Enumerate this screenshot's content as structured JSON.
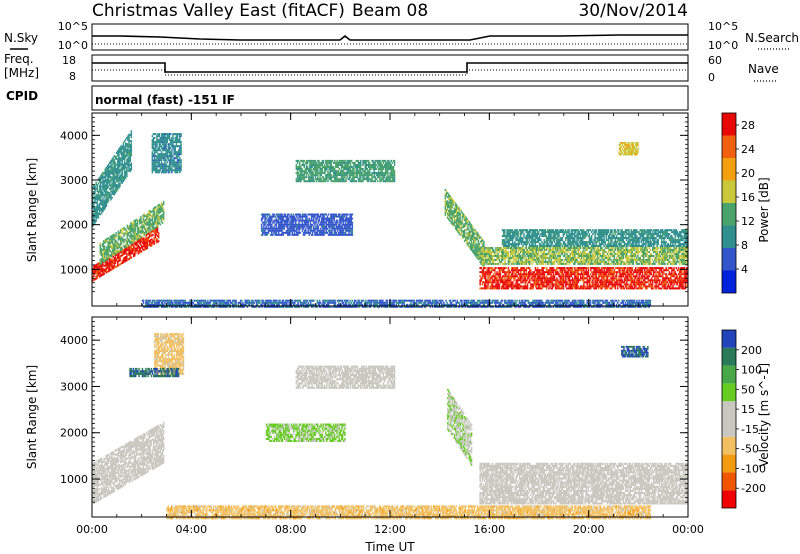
{
  "header": {
    "title": "Christmas Valley East (fitACF)",
    "beam": "Beam 08",
    "date": "30/Nov/2014"
  },
  "strips": {
    "nsky_label": "N.Sky",
    "nsky_ticks": [
      "10^5",
      "10^0"
    ],
    "nsearch_label": "N.Search",
    "nsearch_ticks": [
      "10^5",
      "10^0"
    ],
    "freq_label_1": "Freq.",
    "freq_label_2": "[MHz]",
    "freq_ticks": [
      "18",
      "8"
    ],
    "nave_label": "Nave",
    "nave_ticks": [
      "60",
      "0"
    ],
    "cpid_label": "CPID",
    "cpid_text": "normal (fast) -151 IF"
  },
  "colors": {
    "power_scale": [
      "#0022dd",
      "#3355cc",
      "#2f8f8f",
      "#4aa36a",
      "#c8c83a",
      "#f2a010",
      "#f26010",
      "#e80808"
    ],
    "velocity_scale": [
      "#f00000",
      "#f25500",
      "#f29a10",
      "#f2c060",
      "#c8c8c0",
      "#c8c8c0",
      "#66cc22",
      "#48a848",
      "#2a7a5a",
      "#2244bb"
    ]
  },
  "chart_data": [
    {
      "type": "heatmap",
      "panel": "power",
      "xlabel": "Time UT",
      "ylabel": "Slant Range [km]",
      "x_ticks": [
        "00:00",
        "04:00",
        "08:00",
        "12:00",
        "16:00",
        "20:00",
        "00:00"
      ],
      "x_range_hours": [
        0,
        24
      ],
      "y_ticks": [
        "1000",
        "2000",
        "3000",
        "4000"
      ],
      "ylim": [
        180,
        4500
      ],
      "colorbar_label": "Power [dB]",
      "colorbar_ticks": [
        "4",
        "8",
        "12",
        "16",
        "20",
        "24",
        "28"
      ],
      "colorbar_range": [
        0,
        30
      ],
      "regions": [
        {
          "t0": 0.0,
          "t1": 2.7,
          "r0_start": 900,
          "r0_end": 1800,
          "width": 350,
          "value": 27
        },
        {
          "t0": 0.3,
          "t1": 2.9,
          "r0_start": 1350,
          "r0_end": 2300,
          "width": 500,
          "value": 14
        },
        {
          "t0": 0.0,
          "t1": 1.6,
          "r0_start": 2400,
          "r0_end": 3700,
          "width": 900,
          "value": 10
        },
        {
          "t0": 2.4,
          "t1": 3.6,
          "r0_start": 3600,
          "r0_end": 3600,
          "width": 900,
          "value": 9
        },
        {
          "t0": 8.2,
          "t1": 12.2,
          "r0_start": 3200,
          "r0_end": 3200,
          "width": 500,
          "value": 12
        },
        {
          "t0": 6.8,
          "t1": 10.5,
          "r0_start": 2000,
          "r0_end": 2000,
          "width": 500,
          "value": 6
        },
        {
          "t0": 14.2,
          "t1": 15.8,
          "r0_start": 2500,
          "r0_end": 1300,
          "width": 600,
          "value": 14
        },
        {
          "t0": 15.6,
          "t1": 24.0,
          "r0_start": 800,
          "r0_end": 800,
          "width": 500,
          "value": 27
        },
        {
          "t0": 15.6,
          "t1": 24.0,
          "r0_start": 1300,
          "r0_end": 1300,
          "width": 400,
          "value": 15
        },
        {
          "t0": 16.5,
          "t1": 24.0,
          "r0_start": 1700,
          "r0_end": 1700,
          "width": 400,
          "value": 10
        },
        {
          "t0": 21.2,
          "t1": 22.0,
          "r0_start": 3700,
          "r0_end": 3700,
          "width": 300,
          "value": 18
        },
        {
          "t0": 2.0,
          "t1": 22.5,
          "r0_start": 230,
          "r0_end": 230,
          "width": 180,
          "value": 7
        }
      ]
    },
    {
      "type": "heatmap",
      "panel": "velocity",
      "xlabel": "Time UT",
      "ylabel": "Slant Range [km]",
      "x_ticks": [
        "00:00",
        "04:00",
        "08:00",
        "12:00",
        "16:00",
        "20:00",
        "00:00"
      ],
      "x_range_hours": [
        0,
        24
      ],
      "y_ticks": [
        "1000",
        "2000",
        "3000",
        "4000"
      ],
      "ylim": [
        180,
        4500
      ],
      "colorbar_label": "Velocity [m s^-1]",
      "colorbar_ticks": [
        "200",
        "100",
        "50",
        "15",
        "-15",
        "-50",
        "-100",
        "-200"
      ],
      "colorbar_range": [
        -250,
        250
      ],
      "regions": [
        {
          "t0": 0.0,
          "t1": 2.9,
          "r0_start": 900,
          "r0_end": 1800,
          "width": 900,
          "value": 0
        },
        {
          "t0": 2.5,
          "t1": 3.7,
          "r0_start": 3700,
          "r0_end": 3700,
          "width": 900,
          "value": -70
        },
        {
          "t0": 8.2,
          "t1": 12.2,
          "r0_start": 3200,
          "r0_end": 3200,
          "width": 500,
          "value": 0
        },
        {
          "t0": 7.0,
          "t1": 10.2,
          "r0_start": 2000,
          "r0_end": 2000,
          "width": 400,
          "value": 60
        },
        {
          "t0": 14.3,
          "t1": 15.3,
          "r0_start": 2500,
          "r0_end": 1700,
          "width": 900,
          "value": 40
        },
        {
          "t0": 15.6,
          "t1": 24.0,
          "r0_start": 900,
          "r0_end": 900,
          "width": 900,
          "value": 0
        },
        {
          "t0": 21.3,
          "t1": 22.4,
          "r0_start": 3750,
          "r0_end": 3750,
          "width": 250,
          "value": 200
        },
        {
          "t0": 1.5,
          "t1": 3.5,
          "r0_start": 3300,
          "r0_end": 3300,
          "width": 200,
          "value": 190
        },
        {
          "t0": 3.0,
          "t1": 22.5,
          "r0_start": 280,
          "r0_end": 280,
          "width": 300,
          "value": -75
        }
      ]
    }
  ]
}
